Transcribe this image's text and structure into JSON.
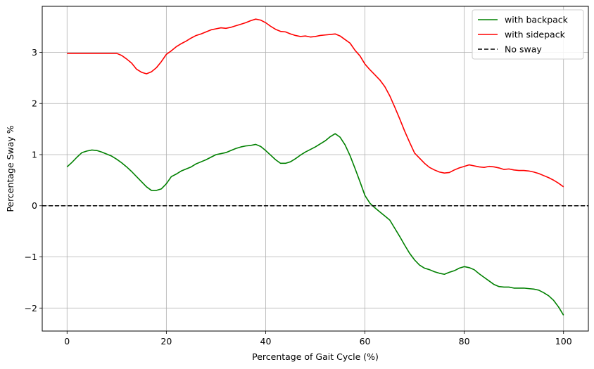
{
  "chart_data": {
    "type": "line",
    "title": "",
    "xlabel": "Percentage of Gait Cycle (%)",
    "ylabel": "Percentage Sway %",
    "xlim": [
      -5,
      105
    ],
    "ylim": [
      -2.45,
      3.9
    ],
    "xticks": [
      0,
      20,
      40,
      60,
      80,
      100
    ],
    "yticks": [
      -2,
      -1,
      0,
      1,
      2,
      3
    ],
    "grid": true,
    "legend_position": "top-right",
    "series": [
      {
        "name": "with backpack",
        "color": "#008000",
        "style": "solid",
        "x": [
          0,
          1,
          2,
          3,
          4,
          5,
          6,
          7,
          8,
          9,
          10,
          11,
          12,
          13,
          14,
          15,
          16,
          17,
          18,
          19,
          20,
          21,
          22,
          23,
          24,
          25,
          26,
          27,
          28,
          29,
          30,
          31,
          32,
          33,
          34,
          35,
          36,
          37,
          38,
          39,
          40,
          41,
          42,
          43,
          44,
          45,
          46,
          47,
          48,
          49,
          50,
          51,
          52,
          53,
          54,
          55,
          56,
          57,
          58,
          59,
          60,
          61,
          62,
          63,
          64,
          65,
          66,
          67,
          68,
          69,
          70,
          71,
          72,
          73,
          74,
          75,
          76,
          77,
          78,
          79,
          80,
          81,
          82,
          83,
          84,
          85,
          86,
          87,
          88,
          89,
          90,
          91,
          92,
          93,
          94,
          95,
          96,
          97,
          98,
          99,
          100
        ],
        "y": [
          0.76,
          0.85,
          0.95,
          1.04,
          1.07,
          1.09,
          1.08,
          1.05,
          1.01,
          0.97,
          0.91,
          0.84,
          0.76,
          0.67,
          0.57,
          0.47,
          0.37,
          0.3,
          0.3,
          0.33,
          0.43,
          0.57,
          0.62,
          0.68,
          0.72,
          0.76,
          0.82,
          0.86,
          0.9,
          0.95,
          1.0,
          1.02,
          1.04,
          1.08,
          1.12,
          1.15,
          1.17,
          1.18,
          1.2,
          1.16,
          1.08,
          0.99,
          0.9,
          0.83,
          0.83,
          0.86,
          0.92,
          0.99,
          1.05,
          1.1,
          1.15,
          1.21,
          1.27,
          1.35,
          1.41,
          1.34,
          1.19,
          0.98,
          0.73,
          0.47,
          0.2,
          0.05,
          -0.04,
          -0.12,
          -0.2,
          -0.28,
          -0.44,
          -0.6,
          -0.77,
          -0.93,
          -1.06,
          -1.16,
          -1.22,
          -1.25,
          -1.29,
          -1.32,
          -1.34,
          -1.3,
          -1.27,
          -1.22,
          -1.19,
          -1.21,
          -1.25,
          -1.33,
          -1.4,
          -1.47,
          -1.54,
          -1.58,
          -1.59,
          -1.59,
          -1.61,
          -1.61,
          -1.61,
          -1.62,
          -1.63,
          -1.65,
          -1.7,
          -1.76,
          -1.85,
          -1.98,
          -2.14
        ]
      },
      {
        "name": "with sidepack",
        "color": "#ff0000",
        "style": "solid",
        "x": [
          0,
          1,
          2,
          3,
          4,
          5,
          6,
          7,
          8,
          9,
          10,
          11,
          12,
          13,
          14,
          15,
          16,
          17,
          18,
          19,
          20,
          21,
          22,
          23,
          24,
          25,
          26,
          27,
          28,
          29,
          30,
          31,
          32,
          33,
          34,
          35,
          36,
          37,
          38,
          39,
          40,
          41,
          42,
          43,
          44,
          45,
          46,
          47,
          48,
          49,
          50,
          51,
          52,
          53,
          54,
          55,
          56,
          57,
          58,
          59,
          60,
          61,
          62,
          63,
          64,
          65,
          66,
          67,
          68,
          69,
          70,
          71,
          72,
          73,
          74,
          75,
          76,
          77,
          78,
          79,
          80,
          81,
          82,
          83,
          84,
          85,
          86,
          87,
          88,
          89,
          90,
          91,
          92,
          93,
          94,
          95,
          96,
          97,
          98,
          99,
          100
        ],
        "y": [
          2.98,
          2.98,
          2.98,
          2.98,
          2.98,
          2.98,
          2.98,
          2.98,
          2.98,
          2.98,
          2.98,
          2.94,
          2.87,
          2.79,
          2.67,
          2.61,
          2.58,
          2.62,
          2.7,
          2.82,
          2.96,
          3.03,
          3.11,
          3.17,
          3.22,
          3.28,
          3.33,
          3.36,
          3.4,
          3.44,
          3.46,
          3.48,
          3.47,
          3.49,
          3.52,
          3.55,
          3.58,
          3.62,
          3.65,
          3.63,
          3.58,
          3.51,
          3.45,
          3.41,
          3.4,
          3.36,
          3.33,
          3.31,
          3.32,
          3.3,
          3.31,
          3.33,
          3.34,
          3.35,
          3.36,
          3.32,
          3.25,
          3.18,
          3.04,
          2.93,
          2.77,
          2.66,
          2.56,
          2.46,
          2.33,
          2.15,
          1.93,
          1.7,
          1.46,
          1.24,
          1.03,
          0.93,
          0.83,
          0.75,
          0.7,
          0.66,
          0.64,
          0.65,
          0.7,
          0.74,
          0.77,
          0.8,
          0.78,
          0.76,
          0.75,
          0.77,
          0.76,
          0.74,
          0.71,
          0.72,
          0.7,
          0.69,
          0.69,
          0.68,
          0.66,
          0.63,
          0.59,
          0.55,
          0.5,
          0.44,
          0.37
        ]
      },
      {
        "name": "No sway",
        "color": "#000000",
        "style": "dashed",
        "x": [
          -5,
          105
        ],
        "y": [
          0,
          0
        ]
      }
    ]
  }
}
